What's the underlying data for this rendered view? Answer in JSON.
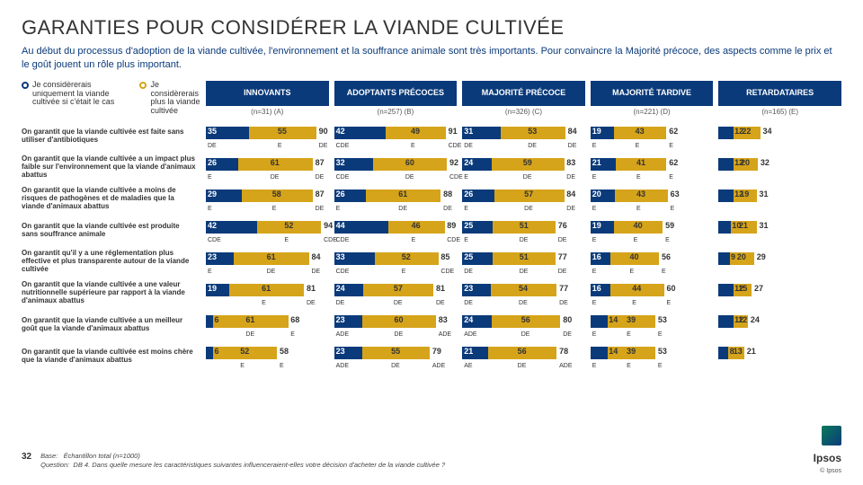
{
  "title": "GARANTIES POUR CONSIDÉRER LA VIANDE CULTIVÉE",
  "subtitle": "Au début du processus d'adoption de la viande cultivée, l'environnement et la souffrance animale sont très importants. Pour convaincre la Majorité précoce, des aspects comme le prix et le goût jouent un rôle plus important.",
  "legend": {
    "opt1": "Je considèrerais uniquement la viande cultivée si c'était le cas",
    "opt2": "Je considèrerais plus la viande cultivée"
  },
  "colors": {
    "primary": "#0a3a7a",
    "secondary": "#d6a41a",
    "bg": "#ffffff"
  },
  "bar_scale_max": 100,
  "columns": [
    {
      "title": "INNOVANTS",
      "n": "(n=31) (A)"
    },
    {
      "title": "ADOPTANTS PRÉCOCES",
      "n": "(n=257) (B)"
    },
    {
      "title": "MAJORITÉ PRÉCOCE",
      "n": "(n=326) (C)"
    },
    {
      "title": "MAJORITÉ TARDIVE",
      "n": "(n=221) (D)"
    },
    {
      "title": "RETARDATAIRES",
      "n": "(n=165) (E)"
    }
  ],
  "rows": [
    {
      "label": "On garantit que la viande cultivée est faite sans utiliser d'antibiotiques",
      "cells": [
        {
          "v1": 35,
          "s1": "DE",
          "v2": 55,
          "s2": "E",
          "t": 90,
          "st": "DE"
        },
        {
          "v1": 42,
          "s1": "CDE",
          "v2": 49,
          "s2": "E",
          "t": 91,
          "st": "CDE"
        },
        {
          "v1": 31,
          "s1": "DE",
          "v2": 53,
          "s2": "DE",
          "t": 84,
          "st": "DE"
        },
        {
          "v1": 19,
          "s1": "E",
          "v2": 43,
          "s2": "E",
          "t": 62,
          "st": "E"
        },
        {
          "v1": 12,
          "s1": "",
          "v2": 22,
          "s2": "",
          "t": 34,
          "st": ""
        }
      ]
    },
    {
      "label": "On garantit que la viande cultivée a un impact plus faible sur l'environnement que la viande d'animaux abattus",
      "cells": [
        {
          "v1": 26,
          "s1": "E",
          "v2": 61,
          "s2": "DE",
          "t": 87,
          "st": "DE"
        },
        {
          "v1": 32,
          "s1": "CDE",
          "v2": 60,
          "s2": "DE",
          "t": 92,
          "st": "CDE"
        },
        {
          "v1": 24,
          "s1": "E",
          "v2": 59,
          "s2": "DE",
          "t": 83,
          "st": "DE"
        },
        {
          "v1": 21,
          "s1": "E",
          "v2": 41,
          "s2": "E",
          "t": 62,
          "st": "E"
        },
        {
          "v1": 12,
          "s1": "",
          "v2": 20,
          "s2": "",
          "t": 32,
          "st": ""
        }
      ]
    },
    {
      "label": "On garantit que la viande cultivée a moins de risques de pathogènes et de maladies que la viande d'animaux abattus",
      "cells": [
        {
          "v1": 29,
          "s1": "E",
          "v2": 58,
          "s2": "E",
          "t": 87,
          "st": "DE"
        },
        {
          "v1": 26,
          "s1": "E",
          "v2": 61,
          "s2": "DE",
          "t": 88,
          "st": "DE"
        },
        {
          "v1": 26,
          "s1": "E",
          "v2": 57,
          "s2": "DE",
          "t": 84,
          "st": "DE"
        },
        {
          "v1": 20,
          "s1": "E",
          "v2": 43,
          "s2": "E",
          "t": 63,
          "st": "E"
        },
        {
          "v1": 12,
          "s1": "",
          "v2": 19,
          "s2": "",
          "t": 31,
          "st": ""
        }
      ]
    },
    {
      "label": "On garantit que la viande cultivée est produite sans souffrance animale",
      "cells": [
        {
          "v1": 42,
          "s1": "CDE",
          "v2": 52,
          "s2": "E",
          "t": 94,
          "st": "CDE"
        },
        {
          "v1": 44,
          "s1": "CDE",
          "v2": 46,
          "s2": "E",
          "t": 89,
          "st": "CDE"
        },
        {
          "v1": 25,
          "s1": "E",
          "v2": 51,
          "s2": "DE",
          "t": 76,
          "st": "DE"
        },
        {
          "v1": 19,
          "s1": "E",
          "v2": 40,
          "s2": "E",
          "t": 59,
          "st": "E"
        },
        {
          "v1": 10,
          "s1": "",
          "v2": 21,
          "s2": "",
          "t": 31,
          "st": ""
        }
      ]
    },
    {
      "label": "On garantit qu'il y a une réglementation plus effective et plus transparente autour de la viande cultivée",
      "cells": [
        {
          "v1": 23,
          "s1": "E",
          "v2": 61,
          "s2": "DE",
          "t": 84,
          "st": "DE"
        },
        {
          "v1": 33,
          "s1": "CDE",
          "v2": 52,
          "s2": "E",
          "t": 85,
          "st": "CDE"
        },
        {
          "v1": 25,
          "s1": "DE",
          "v2": 51,
          "s2": "DE",
          "t": 77,
          "st": "DE"
        },
        {
          "v1": 16,
          "s1": "E",
          "v2": 40,
          "s2": "E",
          "t": 56,
          "st": "E"
        },
        {
          "v1": 9,
          "s1": "",
          "v2": 20,
          "s2": "",
          "t": 29,
          "st": ""
        }
      ]
    },
    {
      "label": "On garantit que la viande cultivée a une valeur nutritionnelle supérieure par rapport à la viande d'animaux abattus",
      "cells": [
        {
          "v1": 19,
          "s1": "",
          "v2": 61,
          "s2": "E",
          "t": 81,
          "st": "DE"
        },
        {
          "v1": 24,
          "s1": "DE",
          "v2": 57,
          "s2": "DE",
          "t": 81,
          "st": "DE"
        },
        {
          "v1": 23,
          "s1": "DE",
          "v2": 54,
          "s2": "DE",
          "t": 77,
          "st": "DE"
        },
        {
          "v1": 16,
          "s1": "E",
          "v2": 44,
          "s2": "E",
          "t": 60,
          "st": "E"
        },
        {
          "v1": 12,
          "s1": "",
          "v2": 15,
          "s2": "",
          "t": 27,
          "st": ""
        }
      ]
    },
    {
      "label": "On garantit que la viande cultivée a un meilleur goût que la viande d'animaux abattus",
      "cells": [
        {
          "v1": 6,
          "s1": "",
          "v2": 61,
          "s2": "DE",
          "t": 68,
          "st": "E"
        },
        {
          "v1": 23,
          "s1": "ADE",
          "v2": 60,
          "s2": "DE",
          "t": 83,
          "st": "ADE"
        },
        {
          "v1": 24,
          "s1": "ADE",
          "v2": 56,
          "s2": "DE",
          "t": 80,
          "st": "DE"
        },
        {
          "v1": 14,
          "s1": "E",
          "v2": 39,
          "s2": "E",
          "t": 53,
          "st": "E"
        },
        {
          "v1": 12,
          "s1": "",
          "v2": 12,
          "s2": "",
          "t": 24,
          "st": ""
        }
      ]
    },
    {
      "label": "On garantit que la viande cultivée est moins chère que la viande d'animaux abattus",
      "cells": [
        {
          "v1": 6,
          "s1": "",
          "v2": 52,
          "s2": "E",
          "t": 58,
          "st": "E"
        },
        {
          "v1": 23,
          "s1": "ADE",
          "v2": 55,
          "s2": "DE",
          "t": 79,
          "st": "ADE"
        },
        {
          "v1": 21,
          "s1": "AE",
          "v2": 56,
          "s2": "DE",
          "t": 78,
          "st": "ADE"
        },
        {
          "v1": 14,
          "s1": "E",
          "v2": 39,
          "s2": "E",
          "t": 53,
          "st": "E"
        },
        {
          "v1": 8,
          "s1": "",
          "v2": 13,
          "s2": "",
          "t": 21,
          "st": ""
        }
      ]
    }
  ],
  "footer": {
    "page": "32",
    "base_lbl": "Base:",
    "base": "Échantillon total (n=1000)",
    "q_lbl": "Question:",
    "q": "DB 4. Dans quelle mesure les caractéristiques suivantes influenceraient-elles votre décision d'acheter de la viande cultivée ?"
  },
  "brand": {
    "name": "Ipsos",
    "copy": "© Ipsos"
  }
}
